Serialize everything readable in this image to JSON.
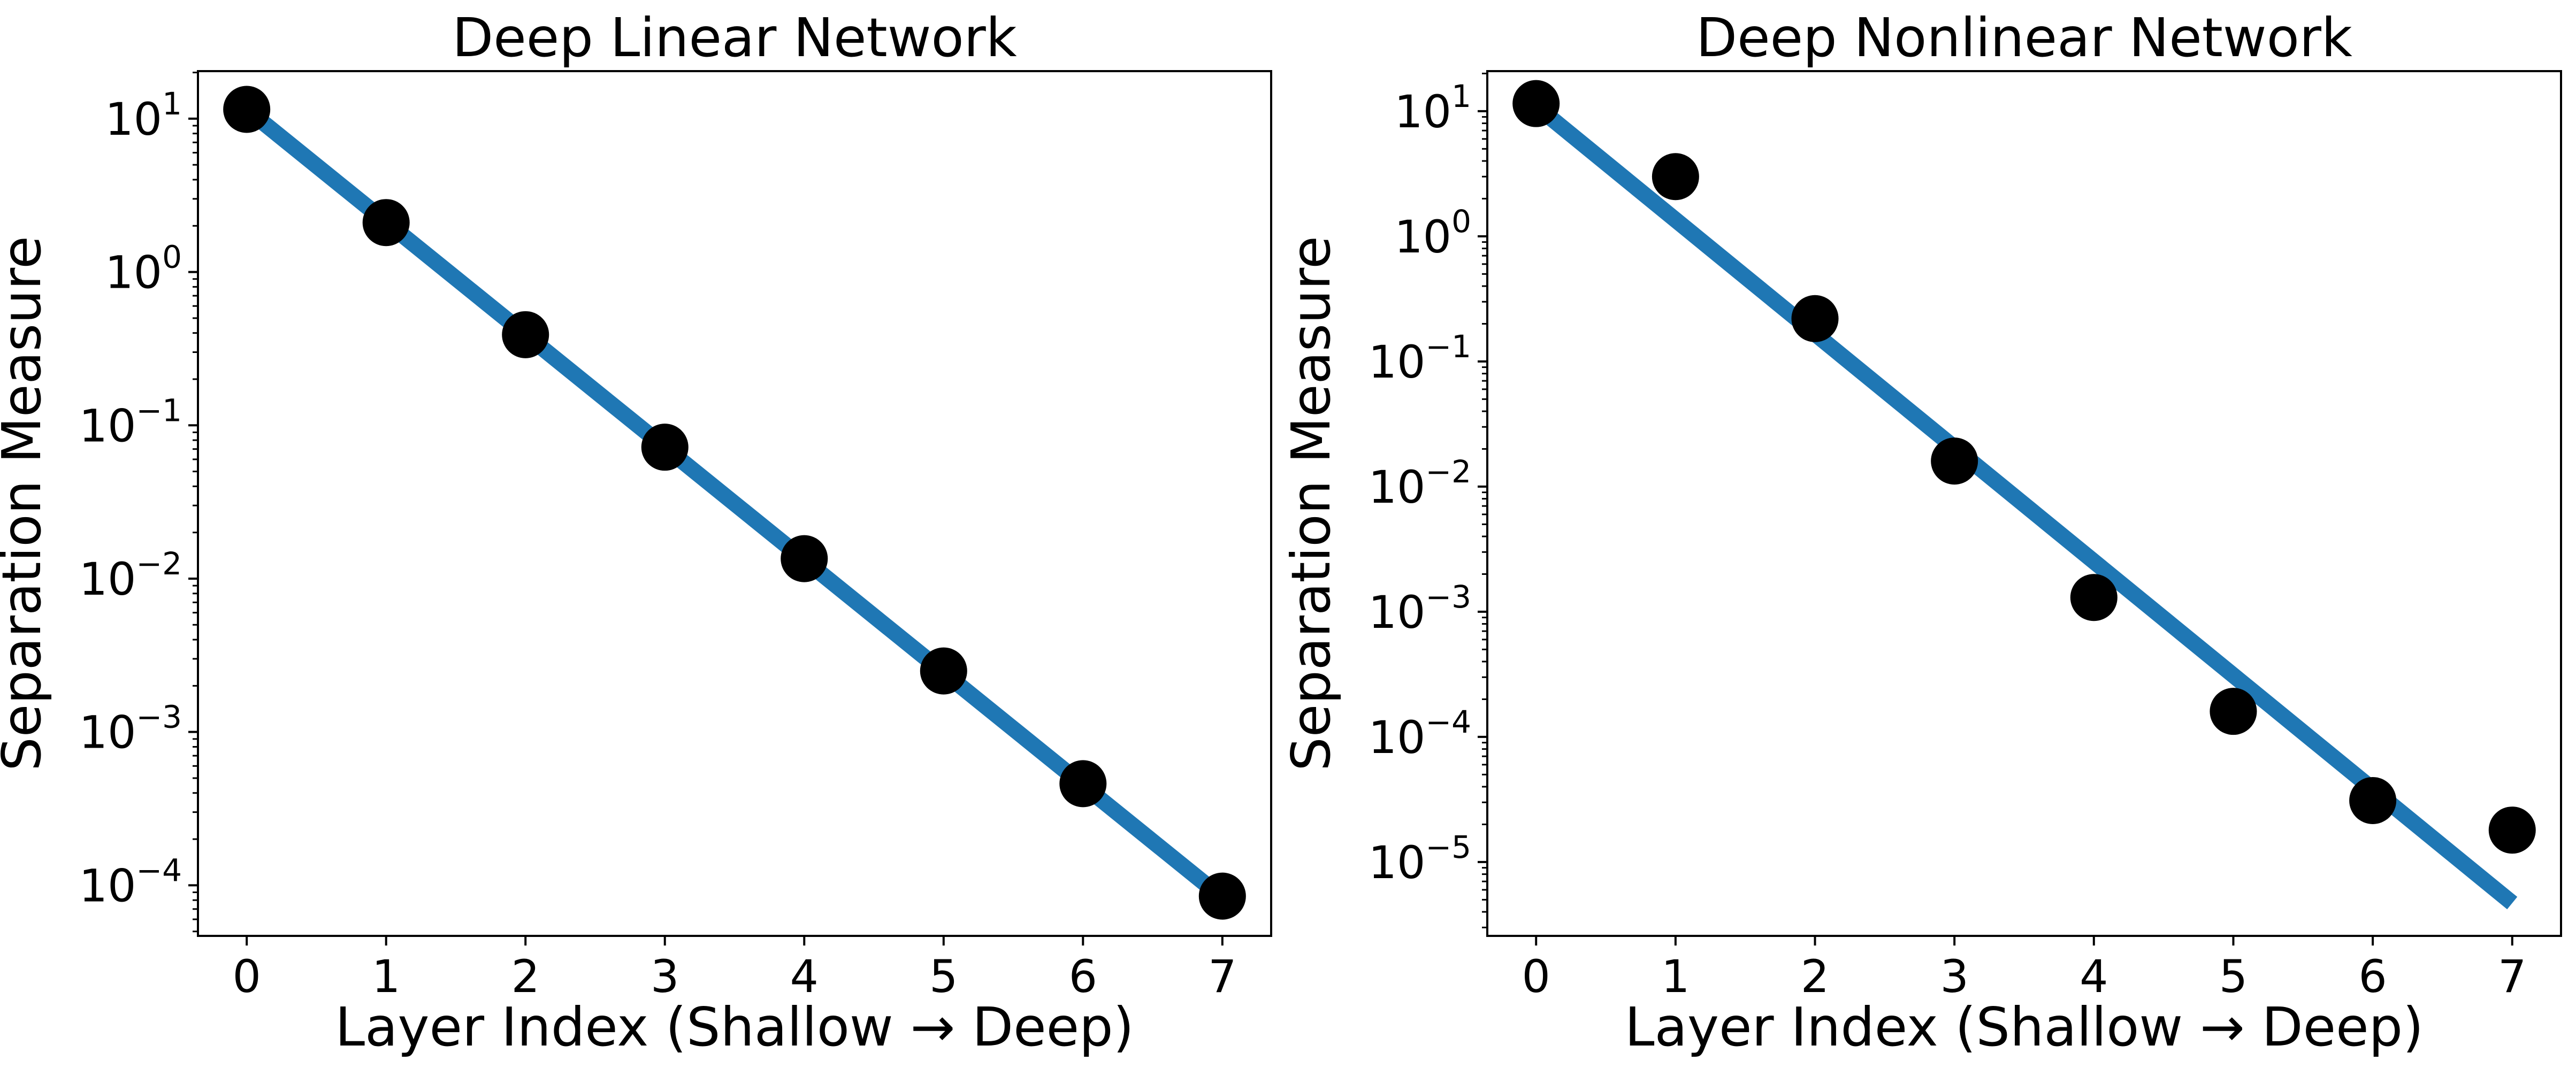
{
  "chart_data": [
    {
      "type": "line",
      "title": "Deep Linear Network",
      "xlabel": "Layer Index (Shallow → Deep)",
      "ylabel": "Separation Measure",
      "yscale": "log",
      "xlim": [
        -0.35,
        7.35
      ],
      "ylim_log10": [
        -4.33,
        1.31
      ],
      "x_ticks": [
        0,
        1,
        2,
        3,
        4,
        5,
        6,
        7
      ],
      "y_tick_exponents": [
        1,
        0,
        -1,
        -2,
        -3,
        -4
      ],
      "y_tick_base": "10",
      "series": [
        {
          "name": "points",
          "kind": "scatter",
          "color": "#000000",
          "x": [
            0,
            1,
            2,
            3,
            4,
            5,
            6,
            7
          ],
          "y": [
            11.5,
            2.1,
            0.39,
            0.072,
            0.0135,
            0.0025,
            0.00046,
            8.5e-05
          ]
        },
        {
          "name": "fit",
          "kind": "line",
          "color": "#1f77b4",
          "x": [
            0,
            7
          ],
          "y": [
            11.5,
            8.3e-05
          ]
        }
      ]
    },
    {
      "type": "line",
      "title": "Deep Nonlinear Network",
      "xlabel": "Layer Index (Shallow → Deep)",
      "ylabel": "Separation Measure",
      "yscale": "log",
      "xlim": [
        -0.35,
        7.35
      ],
      "ylim_log10": [
        -5.59,
        1.32
      ],
      "x_ticks": [
        0,
        1,
        2,
        3,
        4,
        5,
        6,
        7
      ],
      "y_tick_exponents": [
        1,
        0,
        -1,
        -2,
        -3,
        -4,
        -5
      ],
      "y_tick_base": "10",
      "series": [
        {
          "name": "points",
          "kind": "scatter",
          "color": "#000000",
          "x": [
            0,
            1,
            2,
            3,
            4,
            5,
            6,
            7
          ],
          "y": [
            11.5,
            3.0,
            0.22,
            0.016,
            0.0013,
            0.00016,
            3.1e-05,
            1.8e-05
          ]
        },
        {
          "name": "fit",
          "kind": "line",
          "color": "#1f77b4",
          "x": [
            0,
            7
          ],
          "y": [
            11.0,
            4.7e-06
          ]
        }
      ]
    }
  ]
}
